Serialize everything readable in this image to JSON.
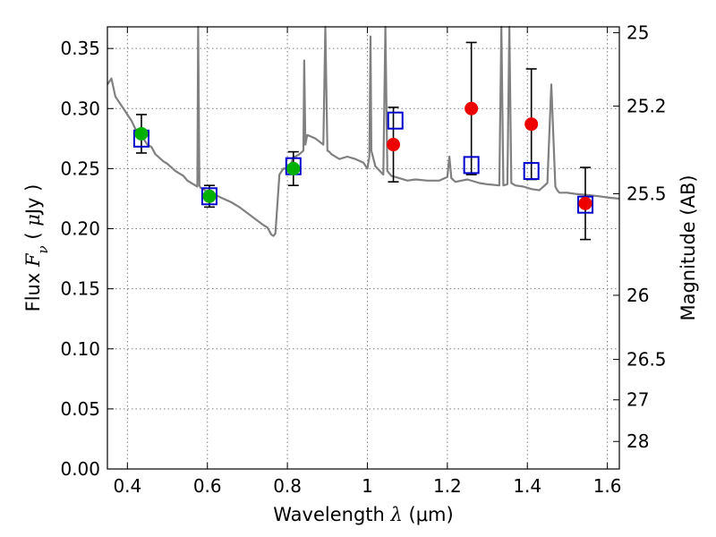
{
  "chart_data": {
    "type": "scatter",
    "title": "",
    "xlabel": "Wavelength  λ (μm)",
    "xlabel_parts": {
      "prefix": "Wavelength  ",
      "lambda": "λ",
      "unit": " (μm)"
    },
    "ylabel": "Flux  F_ν  ( μJy )",
    "ylabel_parts": {
      "prefix": "Flux  ",
      "F": "F",
      "nu": "ν",
      "unit_open": "  ( ",
      "mu": "μ",
      "unit_close": "Jy )"
    },
    "y2label": "Magnitude (AB)",
    "xlim": [
      0.35,
      1.63
    ],
    "ylim": [
      0.0,
      0.368
    ],
    "grid": true,
    "x_ticks": [
      {
        "value": 0.4,
        "label": "0.4"
      },
      {
        "value": 0.6,
        "label": "0.6"
      },
      {
        "value": 0.8,
        "label": "0.8"
      },
      {
        "value": 1.0,
        "label": "1"
      },
      {
        "value": 1.2,
        "label": "1.2"
      },
      {
        "value": 1.4,
        "label": "1.4"
      },
      {
        "value": 1.6,
        "label": "1.6"
      }
    ],
    "y_ticks": [
      {
        "value": 0.0,
        "label": "0.00"
      },
      {
        "value": 0.05,
        "label": "0.05"
      },
      {
        "value": 0.1,
        "label": "0.10"
      },
      {
        "value": 0.15,
        "label": "0.15"
      },
      {
        "value": 0.2,
        "label": "0.20"
      },
      {
        "value": 0.25,
        "label": "0.25"
      },
      {
        "value": 0.3,
        "label": "0.30"
      },
      {
        "value": 0.35,
        "label": "0.35"
      }
    ],
    "y2_ticks": [
      {
        "value": 25,
        "label": "25"
      },
      {
        "value": 25.2,
        "label": "25.2"
      },
      {
        "value": 25.5,
        "label": "25.5"
      },
      {
        "value": 26,
        "label": "26"
      },
      {
        "value": 26.5,
        "label": "26.5"
      },
      {
        "value": 27,
        "label": "27"
      },
      {
        "value": 28,
        "label": "28"
      }
    ],
    "colors": {
      "template": "#808080",
      "model_box": "#0000cc",
      "optical": "#00b000",
      "nir": "#ee0000",
      "error": "#000000"
    },
    "series": [
      {
        "kind": "template-spectrum",
        "x": [
          0.35,
          0.36,
          0.37,
          0.38,
          0.39,
          0.4,
          0.41,
          0.42,
          0.43,
          0.44,
          0.45,
          0.46,
          0.47,
          0.48,
          0.49,
          0.5,
          0.51,
          0.52,
          0.53,
          0.54,
          0.55,
          0.56,
          0.57,
          0.575,
          0.577,
          0.58,
          0.583,
          0.59,
          0.6,
          0.62,
          0.64,
          0.66,
          0.68,
          0.7,
          0.72,
          0.74,
          0.75,
          0.76,
          0.765,
          0.77,
          0.775,
          0.78,
          0.79,
          0.8,
          0.805,
          0.81,
          0.815,
          0.82,
          0.83,
          0.84,
          0.842,
          0.845,
          0.848,
          0.85,
          0.87,
          0.89,
          0.895,
          0.9,
          0.905,
          0.91,
          0.93,
          0.95,
          0.97,
          0.99,
          1.0,
          1.005,
          1.008,
          1.01,
          1.02,
          1.04,
          1.045,
          1.05,
          1.06,
          1.08,
          1.1,
          1.12,
          1.15,
          1.18,
          1.2,
          1.205,
          1.21,
          1.22,
          1.25,
          1.28,
          1.3,
          1.33,
          1.335,
          1.34,
          1.35,
          1.355,
          1.36,
          1.37,
          1.39,
          1.41,
          1.43,
          1.45,
          1.46,
          1.47,
          1.475,
          1.48,
          1.5,
          1.52,
          1.55,
          1.58,
          1.6,
          1.63
        ],
        "y": [
          0.32,
          0.325,
          0.31,
          0.305,
          0.3,
          0.295,
          0.29,
          0.283,
          0.28,
          0.275,
          0.27,
          0.268,
          0.262,
          0.259,
          0.256,
          0.254,
          0.251,
          0.248,
          0.246,
          0.244,
          0.24,
          0.238,
          0.236,
          0.235,
          0.37,
          0.236,
          0.234,
          0.233,
          0.23,
          0.228,
          0.225,
          0.222,
          0.218,
          0.213,
          0.208,
          0.203,
          0.201,
          0.195,
          0.194,
          0.196,
          0.22,
          0.245,
          0.25,
          0.25,
          0.25,
          0.255,
          0.26,
          0.26,
          0.262,
          0.265,
          0.34,
          0.27,
          0.275,
          0.278,
          0.275,
          0.27,
          0.37,
          0.265,
          0.264,
          0.262,
          0.258,
          0.26,
          0.258,
          0.255,
          0.25,
          0.26,
          0.36,
          0.265,
          0.252,
          0.245,
          0.37,
          0.248,
          0.244,
          0.242,
          0.24,
          0.241,
          0.24,
          0.24,
          0.243,
          0.26,
          0.242,
          0.239,
          0.241,
          0.238,
          0.237,
          0.236,
          0.37,
          0.236,
          0.237,
          0.37,
          0.238,
          0.236,
          0.235,
          0.233,
          0.232,
          0.238,
          0.32,
          0.235,
          0.232,
          0.23,
          0.23,
          0.229,
          0.228,
          0.227,
          0.226,
          0.225
        ]
      },
      {
        "kind": "model-boxes",
        "x": [
          0.435,
          0.605,
          0.815,
          1.07,
          1.26,
          1.41,
          1.545
        ],
        "y": [
          0.275,
          0.227,
          0.252,
          0.29,
          0.253,
          0.248,
          0.22
        ]
      },
      {
        "kind": "optical-points",
        "x": [
          0.435,
          0.605,
          0.815
        ],
        "y": [
          0.279,
          0.227,
          0.25
        ],
        "err": [
          0.016,
          0.009,
          0.014
        ]
      },
      {
        "kind": "nir-points",
        "x": [
          1.065,
          1.26,
          1.41,
          1.545
        ],
        "y": [
          0.27,
          0.3,
          0.287,
          0.221
        ],
        "err_low": [
          0.031,
          0.055,
          0.046,
          0.03
        ],
        "err_high": [
          0.031,
          0.055,
          0.046,
          0.03
        ]
      }
    ]
  }
}
